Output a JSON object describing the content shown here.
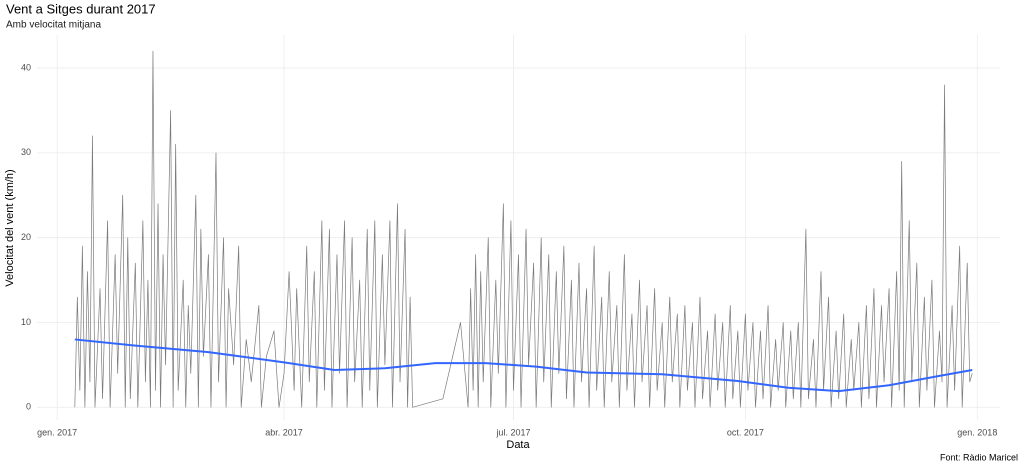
{
  "chart_data": {
    "type": "line",
    "title": "Vent a Sitges durant 2017",
    "subtitle": "Amb velocitat mitjana",
    "x_label": "Data",
    "y_label": "Velocitat del vent (km/h)",
    "caption": "Font: Ràdio Maricel",
    "grid": true,
    "xlim": [
      -8,
      374
    ],
    "ylim": [
      -1.5,
      43.9
    ],
    "xticks": [
      {
        "value": 0,
        "label": "gen. 2017"
      },
      {
        "value": 90,
        "label": "abr. 2017"
      },
      {
        "value": 181,
        "label": "jul. 2017"
      },
      {
        "value": 273,
        "label": "oct. 2017"
      },
      {
        "value": 365,
        "label": "gen. 2018"
      }
    ],
    "yticks": [
      0,
      10,
      20,
      30,
      40
    ],
    "series": [
      {
        "color": "#7a7a7a",
        "x": [
          7,
          8,
          9,
          10,
          11,
          12,
          13,
          14,
          15,
          17,
          18,
          20,
          21,
          23,
          24,
          26,
          27,
          28,
          29,
          31,
          32,
          34,
          35,
          36,
          37,
          38,
          39,
          40,
          41,
          42,
          43,
          45,
          46,
          47,
          48,
          50,
          51,
          52,
          53,
          55,
          56,
          57,
          58,
          60,
          61,
          63,
          64,
          66,
          67,
          68,
          70,
          72,
          73,
          75,
          77,
          80,
          81,
          83,
          86,
          88,
          90,
          92,
          94,
          95,
          97,
          99,
          100,
          102,
          103,
          105,
          106,
          108,
          109,
          111,
          112,
          114,
          115,
          117,
          118,
          120,
          121,
          123,
          124,
          126,
          127,
          129,
          130,
          132,
          133,
          135,
          136,
          138,
          139,
          140,
          141,
          153,
          160,
          163,
          164,
          165,
          166,
          167,
          168,
          169,
          171,
          172,
          174,
          175,
          177,
          178,
          180,
          181,
          183,
          184,
          186,
          187,
          189,
          190,
          192,
          193,
          195,
          196,
          198,
          199,
          201,
          202,
          204,
          205,
          207,
          208,
          210,
          211,
          213,
          214,
          216,
          217,
          219,
          220,
          222,
          223,
          225,
          226,
          228,
          229,
          231,
          232,
          234,
          235,
          237,
          238,
          240,
          241,
          243,
          244,
          246,
          247,
          249,
          250,
          252,
          253,
          255,
          256,
          258,
          259,
          261,
          262,
          264,
          265,
          267,
          268,
          270,
          271,
          273,
          274,
          276,
          277,
          279,
          280,
          282,
          283,
          285,
          286,
          288,
          289,
          291,
          292,
          294,
          295,
          297,
          298,
          300,
          301,
          303,
          304,
          306,
          307,
          309,
          310,
          312,
          313,
          315,
          316,
          318,
          319,
          321,
          322,
          324,
          325,
          327,
          328,
          330,
          331,
          333,
          334,
          335,
          336,
          338,
          339,
          341,
          342,
          344,
          345,
          347,
          348,
          350,
          351,
          352,
          353,
          355,
          356,
          358,
          359,
          361,
          362,
          363
        ],
        "values": [
          0,
          13,
          2,
          19,
          0,
          16,
          3,
          32,
          0,
          14,
          1,
          22,
          0,
          18,
          4,
          25,
          0,
          20,
          1,
          17,
          0,
          22,
          3,
          15,
          0,
          42,
          2,
          24,
          0,
          18,
          5,
          35,
          0,
          31,
          2,
          15,
          0,
          12,
          4,
          25,
          0,
          21,
          6,
          18,
          0,
          30,
          3,
          20,
          0,
          14,
          5,
          19,
          0,
          8,
          3,
          12,
          0,
          6,
          9,
          0,
          4,
          16,
          2,
          14,
          0,
          19,
          3,
          16,
          0,
          22,
          2,
          21,
          0,
          18,
          4,
          22,
          0,
          20,
          3,
          15,
          0,
          21,
          2,
          22,
          0,
          18,
          5,
          22,
          0,
          24,
          3,
          21,
          0,
          13,
          0,
          1,
          10,
          0,
          14,
          2,
          18,
          0,
          16,
          3,
          20,
          0,
          15,
          4,
          24,
          0,
          22,
          2,
          18,
          0,
          21,
          5,
          17,
          0,
          20,
          3,
          18,
          0,
          16,
          4,
          19,
          1,
          15,
          0,
          17,
          3,
          14,
          0,
          19,
          2,
          13,
          0,
          16,
          3,
          12,
          0,
          18,
          2,
          11,
          0,
          15,
          3,
          12,
          0,
          14,
          2,
          10,
          0,
          13,
          3,
          11,
          0,
          12,
          2,
          10,
          0,
          13,
          1,
          9,
          0,
          11,
          2,
          10,
          0,
          12,
          1,
          9,
          0,
          11,
          2,
          10,
          0,
          9,
          1,
          12,
          0,
          8,
          2,
          10,
          0,
          9,
          1,
          10,
          0,
          21,
          1,
          8,
          0,
          16,
          2,
          13,
          0,
          9,
          1,
          11,
          0,
          8,
          2,
          10,
          0,
          12,
          1,
          14,
          0,
          12,
          3,
          14,
          0,
          16,
          2,
          29,
          0,
          22,
          3,
          17,
          0,
          13,
          2,
          15,
          0,
          9,
          3,
          38,
          0,
          12,
          2,
          19,
          0,
          17,
          3,
          4
        ]
      },
      {
        "color": "#3366ff",
        "x": [
          7,
          30,
          60,
          90,
          110,
          130,
          150,
          170,
          190,
          210,
          240,
          270,
          290,
          310,
          330,
          350,
          363
        ],
        "values": [
          8,
          7.3,
          6.5,
          5.3,
          4.4,
          4.6,
          5.2,
          5.2,
          4.8,
          4.1,
          3.9,
          3.1,
          2.3,
          1.9,
          2.6,
          3.7,
          4.4
        ]
      }
    ]
  }
}
